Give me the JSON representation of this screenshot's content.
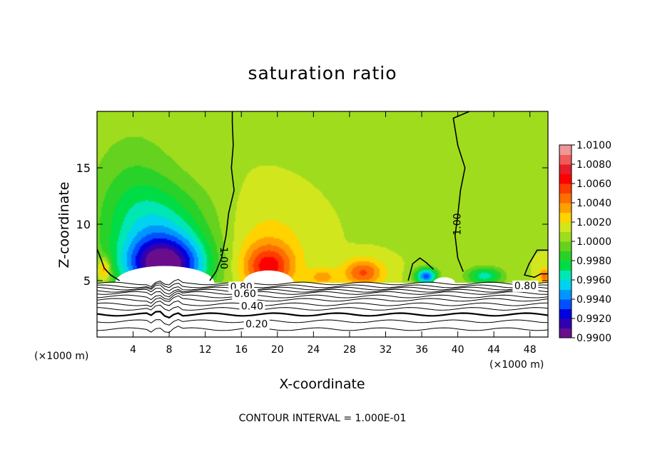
{
  "chart_data": {
    "type": "heatmap",
    "title": "saturation ratio",
    "xlabel": "X-coordinate",
    "ylabel": "Z-coordinate",
    "x_unit": "(×1000 m)",
    "x_unit_right": "(×1000 m)",
    "footer": "CONTOUR INTERVAL = 1.000E-01",
    "xlim": [
      0,
      50
    ],
    "ylim": [
      0,
      20
    ],
    "x_ticks": [
      4,
      8,
      12,
      16,
      20,
      24,
      28,
      32,
      36,
      40,
      44,
      48
    ],
    "y_ticks": [
      5,
      10,
      15
    ],
    "colorbar": {
      "range": [
        0.99,
        1.01
      ],
      "ticks": [
        "1.0100",
        "1.0080",
        "1.0060",
        "1.0040",
        "1.0020",
        "1.0000",
        "0.9980",
        "0.9960",
        "0.9940",
        "0.9920",
        "0.9900"
      ],
      "colors": [
        "#6a0d8c",
        "#3000b0",
        "#0000e0",
        "#0050ff",
        "#0096ff",
        "#00d2f0",
        "#00e6b4",
        "#00dc46",
        "#28d228",
        "#64d21e",
        "#a0dc1e",
        "#d2e61e",
        "#ffd200",
        "#ffa000",
        "#ff6e00",
        "#ff3c00",
        "#ff0000",
        "#e61e28",
        "#f05a5a",
        "#f09696"
      ]
    },
    "surface_z": 4.8,
    "background_value": 1.001,
    "anomalies": [
      {
        "x": 7.5,
        "z": 6.2,
        "sx": 4.5,
        "sz": 2.6,
        "value": 0.9915
      },
      {
        "x": 7.0,
        "z": 9.5,
        "sx": 6.0,
        "sz": 4.0,
        "value": 0.9972
      },
      {
        "x": 4.0,
        "z": 13.0,
        "sx": 5.0,
        "sz": 6.0,
        "value": 0.9992
      },
      {
        "x": 19.0,
        "z": 6.2,
        "sx": 2.8,
        "sz": 2.0,
        "value": 1.0062
      },
      {
        "x": 19.0,
        "z": 9.0,
        "sx": 5.0,
        "sz": 3.5,
        "value": 1.0022
      },
      {
        "x": 29.5,
        "z": 5.7,
        "sx": 2.2,
        "sz": 1.2,
        "value": 1.0052
      },
      {
        "x": 25.0,
        "z": 5.3,
        "sx": 1.5,
        "sz": 0.8,
        "value": 1.0035
      },
      {
        "x": 27.0,
        "z": 13.0,
        "sx": 9.0,
        "sz": 7.0,
        "value": 1.0009
      },
      {
        "x": 36.5,
        "z": 5.4,
        "sx": 1.2,
        "sz": 0.7,
        "value": 0.9935
      },
      {
        "x": 43.0,
        "z": 5.4,
        "sx": 2.0,
        "sz": 0.8,
        "value": 0.9965
      },
      {
        "x": 0.8,
        "z": 6.0,
        "sx": 0.7,
        "sz": 1.0,
        "value": 1.005
      },
      {
        "x": 49.6,
        "z": 5.4,
        "sx": 0.6,
        "sz": 0.7,
        "value": 1.0045
      }
    ],
    "contours": [
      {
        "label": "1.00",
        "label_at": [
          14.0,
          7.0
        ],
        "label_rotate": 90,
        "points": [
          [
            15.0,
            20
          ],
          [
            15.0,
            19
          ],
          [
            15.1,
            17
          ],
          [
            14.9,
            15
          ],
          [
            15.2,
            13
          ],
          [
            14.6,
            11
          ],
          [
            14.3,
            9
          ],
          [
            13.8,
            7
          ],
          [
            13.2,
            5.8
          ],
          [
            12.5,
            5.0
          ]
        ]
      },
      {
        "label": "1.00",
        "label_at": [
          40.0,
          10.0
        ],
        "label_rotate": -90,
        "points": [
          [
            41.3,
            20
          ],
          [
            39.5,
            19.4
          ],
          [
            40.0,
            17
          ],
          [
            40.8,
            15
          ],
          [
            40.3,
            13
          ],
          [
            40.0,
            10.8
          ],
          [
            39.7,
            9
          ],
          [
            40.0,
            7
          ],
          [
            40.6,
            5.8
          ]
        ]
      },
      {
        "label": "",
        "label_at": null,
        "label_rotate": 0,
        "points": [
          [
            0,
            7.8
          ],
          [
            0.4,
            7.0
          ],
          [
            0.8,
            6.1
          ],
          [
            1.5,
            5.5
          ],
          [
            2.5,
            5.0
          ]
        ]
      },
      {
        "label": "",
        "label_at": null,
        "label_rotate": 0,
        "points": [
          [
            34.5,
            5.0
          ],
          [
            35.0,
            6.5
          ],
          [
            35.8,
            7.0
          ],
          [
            36.5,
            6.6
          ],
          [
            37.3,
            6.0
          ]
        ]
      },
      {
        "label": "",
        "label_at": null,
        "label_rotate": 0,
        "points": [
          [
            50,
            7.7
          ],
          [
            48.8,
            7.7
          ],
          [
            47.9,
            6.5
          ],
          [
            47.4,
            5.5
          ],
          [
            48.5,
            5.3
          ],
          [
            49.2,
            5.6
          ],
          [
            50,
            5.6
          ]
        ]
      }
    ],
    "surface_contours": [
      {
        "label": "0.80",
        "label_at": [
          16.0,
          4.4
        ]
      },
      {
        "label": "0.80",
        "label_at": [
          47.5,
          4.5
        ]
      },
      {
        "label": "0.60",
        "label_at": [
          16.4,
          3.8
        ]
      },
      {
        "label": "0.40",
        "label_at": [
          17.2,
          2.7
        ]
      },
      {
        "label": "0.20",
        "label_at": [
          17.7,
          1.1
        ]
      }
    ]
  }
}
